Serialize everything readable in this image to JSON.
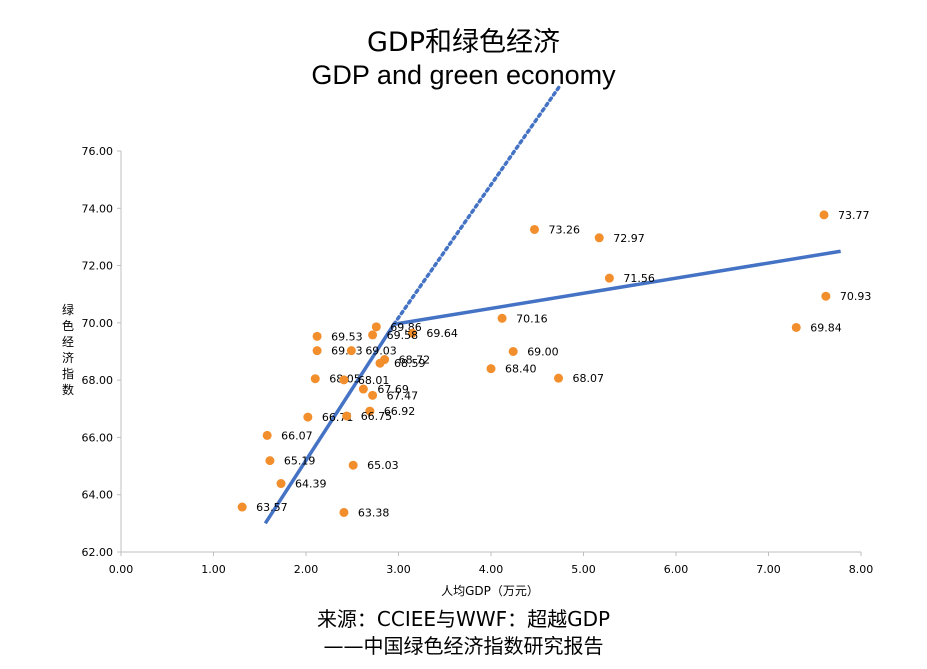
{
  "chart_data": {
    "type": "scatter",
    "title": "GDP和绿色经济",
    "subtitle": "GDP and green economy",
    "xlabel": "人均GDP（万元）",
    "ylabel": "绿色经济指数",
    "xlim": [
      0,
      8
    ],
    "ylim": [
      62,
      76
    ],
    "x_ticks": [
      "0.00",
      "1.00",
      "2.00",
      "3.00",
      "4.00",
      "5.00",
      "6.00",
      "7.00",
      "8.00"
    ],
    "y_ticks": [
      "62.00",
      "64.00",
      "66.00",
      "68.00",
      "70.00",
      "72.00",
      "74.00",
      "76.00"
    ],
    "marker_color": "#F28E2B",
    "trend_color": "#4472C4",
    "points": [
      {
        "x": 7.6,
        "y": 73.77,
        "label": "73.77"
      },
      {
        "x": 4.47,
        "y": 73.26,
        "label": "73.26"
      },
      {
        "x": 5.17,
        "y": 72.97,
        "label": "72.97"
      },
      {
        "x": 5.28,
        "y": 71.56,
        "label": "71.56"
      },
      {
        "x": 7.62,
        "y": 70.93,
        "label": "70.93"
      },
      {
        "x": 4.12,
        "y": 70.16,
        "label": "70.16"
      },
      {
        "x": 7.3,
        "y": 69.84,
        "label": "69.84"
      },
      {
        "x": 2.76,
        "y": 69.86,
        "label": "69.86"
      },
      {
        "x": 3.15,
        "y": 69.64,
        "label": "69.64"
      },
      {
        "x": 2.72,
        "y": 69.58,
        "label": "69.58"
      },
      {
        "x": 2.12,
        "y": 69.53,
        "label": "69.53"
      },
      {
        "x": 2.12,
        "y": 69.03,
        "label": "69.03"
      },
      {
        "x": 2.49,
        "y": 69.03,
        "label": "69.03"
      },
      {
        "x": 4.24,
        "y": 69.0,
        "label": "69.00"
      },
      {
        "x": 2.85,
        "y": 68.72,
        "label": "68.72"
      },
      {
        "x": 2.8,
        "y": 68.59,
        "label": "68.59"
      },
      {
        "x": 4.0,
        "y": 68.4,
        "label": "68.40"
      },
      {
        "x": 4.73,
        "y": 68.07,
        "label": "68.07"
      },
      {
        "x": 2.1,
        "y": 68.05,
        "label": "68.05"
      },
      {
        "x": 2.41,
        "y": 68.01,
        "label": "68.01"
      },
      {
        "x": 2.62,
        "y": 67.69,
        "label": "67.69"
      },
      {
        "x": 2.72,
        "y": 67.47,
        "label": "67.47"
      },
      {
        "x": 2.69,
        "y": 66.92,
        "label": "66.92"
      },
      {
        "x": 2.02,
        "y": 66.71,
        "label": "66.71"
      },
      {
        "x": 2.44,
        "y": 66.75,
        "label": "66.75"
      },
      {
        "x": 1.58,
        "y": 66.07,
        "label": "66.07"
      },
      {
        "x": 1.61,
        "y": 65.19,
        "label": "65.19"
      },
      {
        "x": 2.51,
        "y": 65.03,
        "label": "65.03"
      },
      {
        "x": 1.73,
        "y": 64.39,
        "label": "64.39"
      },
      {
        "x": 1.31,
        "y": 63.57,
        "label": "63.57"
      },
      {
        "x": 2.41,
        "y": 63.38,
        "label": "63.38"
      }
    ],
    "trend_lines": [
      {
        "name": "low-gdp-trend",
        "style": "solid",
        "x": [
          1.56,
          2.95
        ],
        "y": [
          63.0,
          69.95
        ]
      },
      {
        "name": "high-gdp-trend",
        "style": "solid",
        "x": [
          2.95,
          7.78
        ],
        "y": [
          69.95,
          72.5
        ]
      },
      {
        "name": "extrapolated-trend",
        "style": "dotted",
        "x": [
          2.95,
          4.75
        ],
        "y": [
          69.95,
          78.3
        ]
      }
    ]
  },
  "source": {
    "line1": "来源：CCIEE与WWF：超越GDP",
    "line2": "——中国绿色经济指数研究报告"
  }
}
